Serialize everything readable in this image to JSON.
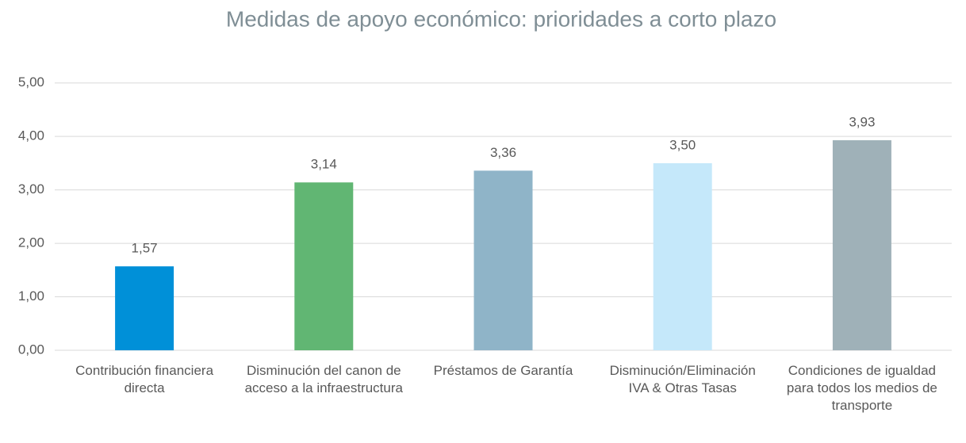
{
  "chart_data": {
    "type": "bar",
    "title": "Medidas de apoyo económico: prioridades a corto plazo",
    "categories": [
      "Contribución financiera directa",
      "Disminución del canon de acceso a la infraestructura",
      "Préstamos de Garantía",
      "Disminución/Eliminación IVA & Otras Tasas",
      "Condiciones de igualdad para todos los medios de transporte"
    ],
    "values": [
      1.57,
      3.14,
      3.36,
      3.5,
      3.93
    ],
    "value_labels": [
      "1,57",
      "3,14",
      "3,36",
      "3,50",
      "3,93"
    ],
    "colors": [
      "#0090d8",
      "#61b673",
      "#8fb4c8",
      "#c5e8fa",
      "#9fb1b8"
    ],
    "ylim": [
      0,
      5.5
    ],
    "yticks": [
      {
        "value": 0,
        "label": "0,00"
      },
      {
        "value": 1,
        "label": "1,00"
      },
      {
        "value": 2,
        "label": "2,00"
      },
      {
        "value": 3,
        "label": "3,00"
      },
      {
        "value": 4,
        "label": "4,00"
      },
      {
        "value": 5,
        "label": "5,00"
      }
    ],
    "grid": true
  }
}
